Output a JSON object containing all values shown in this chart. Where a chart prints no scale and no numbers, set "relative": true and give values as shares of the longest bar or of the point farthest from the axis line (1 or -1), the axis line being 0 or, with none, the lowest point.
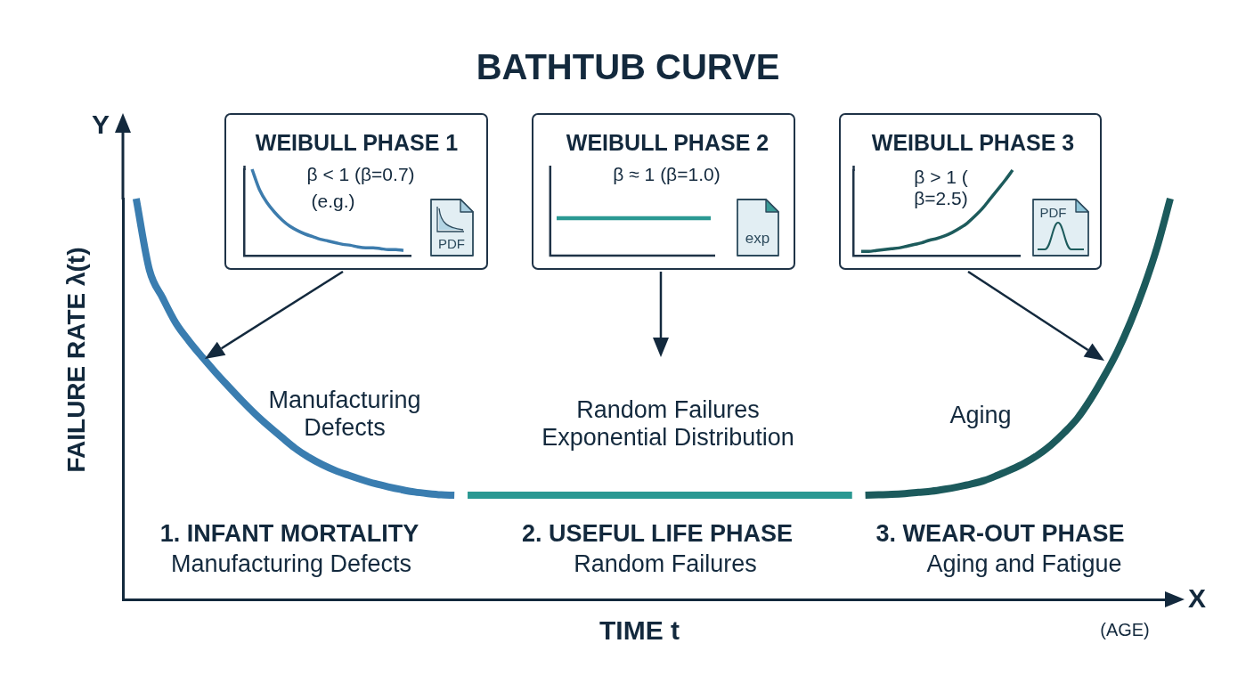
{
  "chart_data": [
    {
      "type": "line",
      "title": "BATHTUB CURVE",
      "xlabel": "TIME t",
      "ylabel": "FAILURE RATE λ(t)",
      "annotations": [
        "Y",
        "X",
        "(AGE)",
        "Manufacturing\nDefects",
        "Random Failures\nExponential Distribution",
        "Aging",
        "1. INFANT MORTALITY",
        "Manufacturing Defects",
        "2. USEFUL LIFE PHASE",
        "Random Failures",
        "3. WEAR-OUT PHASE",
        "Aging and Fatigue"
      ],
      "categories": [
        null,
        null,
        null,
        null,
        null,
        null,
        null,
        null,
        null,
        null,
        null,
        null,
        null,
        null,
        null,
        null,
        null,
        null,
        null,
        null,
        null,
        null,
        null,
        null,
        null,
        null,
        null,
        null,
        null,
        null,
        null,
        null,
        null,
        null,
        null,
        null,
        null,
        null,
        null,
        null,
        null,
        null,
        null,
        null,
        null,
        null,
        null,
        null,
        null,
        null,
        null,
        null,
        null,
        null,
        null,
        null,
        null,
        null,
        null,
        null,
        null,
        null,
        null,
        null,
        null,
        null,
        null,
        null,
        null,
        null,
        null,
        null,
        null,
        null,
        null,
        null,
        null,
        null,
        null,
        null
      ],
      "relative": true,
      "tick_labels": false,
      "series": [
        {
          "color": "#3a7db0",
          "values": [
            null,
            1,
            0.822,
            0.752,
            0.689,
            0.644,
            0.604,
            0.566,
            0.53,
            0.495,
            0.462,
            0.432,
            0.404,
            0.377,
            0.355,
            0.337,
            0.322,
            0.31,
            0.299,
            0.289,
            0.281,
            0.274,
            0.268,
            0.264,
            0.261,
            0.26,
            null,
            null,
            null,
            null,
            null,
            null,
            null,
            null,
            null,
            null,
            null,
            null,
            null,
            null,
            null,
            null,
            null,
            null,
            null,
            null,
            null,
            null,
            null,
            null,
            null,
            null,
            null,
            null,
            null,
            null,
            null,
            null,
            null,
            null,
            null,
            null,
            null,
            null,
            null,
            null,
            null,
            null,
            null,
            null,
            null,
            null,
            null,
            null,
            null,
            null,
            null,
            null,
            null,
            null
          ]
        },
        {
          "color": "#2a9892",
          "values": [
            null,
            null,
            null,
            null,
            null,
            null,
            null,
            null,
            null,
            null,
            null,
            null,
            null,
            null,
            null,
            null,
            null,
            null,
            null,
            null,
            null,
            null,
            null,
            null,
            null,
            null,
            0.26,
            0.26,
            0.26,
            0.26,
            0.26,
            0.26,
            0.26,
            0.26,
            0.26,
            0.26,
            0.26,
            0.26,
            0.26,
            0.26,
            0.26,
            0.26,
            0.26,
            0.26,
            0.26,
            0.26,
            0.26,
            0.26,
            0.26,
            0.26,
            0.26,
            0.26,
            0.26,
            0.26,
            0.26,
            0.26,
            null,
            null,
            null,
            null,
            null,
            null,
            null,
            null,
            null,
            null,
            null,
            null,
            null,
            null,
            null,
            null,
            null,
            null,
            null,
            null,
            null,
            null,
            null,
            null
          ]
        },
        {
          "color": "#1c5a5c",
          "values": [
            null,
            null,
            null,
            null,
            null,
            null,
            null,
            null,
            null,
            null,
            null,
            null,
            null,
            null,
            null,
            null,
            null,
            null,
            null,
            null,
            null,
            null,
            null,
            null,
            null,
            null,
            null,
            null,
            null,
            null,
            null,
            null,
            null,
            null,
            null,
            null,
            null,
            null,
            null,
            null,
            null,
            null,
            null,
            null,
            null,
            null,
            null,
            null,
            null,
            null,
            null,
            null,
            null,
            null,
            null,
            null,
            0.26,
            0.261,
            0.262,
            0.264,
            0.267,
            0.27,
            0.275,
            0.281,
            0.288,
            0.297,
            0.31,
            0.324,
            0.34,
            0.36,
            0.385,
            0.416,
            0.452,
            0.5,
            0.556,
            0.618,
            0.692,
            0.778,
            0.878,
            1
          ]
        }
      ]
    },
    {
      "type": "line",
      "title": "WEIBULL PHASE 1",
      "annotations": [
        "β < 1 (β=0.7)",
        "(e.g.)",
        "PDF"
      ],
      "categories": [
        null,
        null,
        null,
        null,
        null,
        null,
        null,
        null,
        null,
        null,
        null,
        null,
        null,
        null,
        null,
        null,
        null,
        null,
        null,
        null,
        null,
        null,
        null
      ],
      "relative": true,
      "tick_labels": false,
      "series": [
        {
          "color": "#3d7cad",
          "values": [
            null,
            1,
            0.76,
            0.61,
            0.5,
            0.41,
            0.34,
            0.29,
            0.25,
            0.22,
            0.19,
            0.17,
            0.15,
            0.13,
            0.12,
            0.1,
            0.09,
            0.09,
            0.08,
            0.07,
            0.07,
            0.06,
            null
          ]
        }
      ]
    },
    {
      "type": "other",
      "title": "WEIBULL PHASE 2",
      "annotations": [
        "β ≈ 1 (β=1.0)",
        "exp"
      ]
    },
    {
      "type": "line",
      "title": "WEIBULL PHASE 3",
      "annotations": [
        "β > 1 (\nβ=2.5)",
        "PDF"
      ],
      "categories": [
        null,
        null,
        null,
        null,
        null,
        null,
        null,
        null,
        null,
        null,
        null,
        null,
        null,
        null,
        null,
        null,
        null,
        null,
        null,
        null,
        null,
        null,
        null
      ],
      "relative": true,
      "tick_labels": false,
      "series": [
        {
          "color": "#1d5b5c",
          "values": [
            null,
            0.05,
            0.05,
            0.06,
            0.07,
            0.08,
            0.09,
            0.11,
            0.13,
            0.15,
            0.18,
            0.2,
            0.23,
            0.27,
            0.32,
            0.38,
            0.46,
            0.55,
            0.66,
            0.77,
            0.88,
            1,
            null
          ]
        }
      ]
    }
  ]
}
